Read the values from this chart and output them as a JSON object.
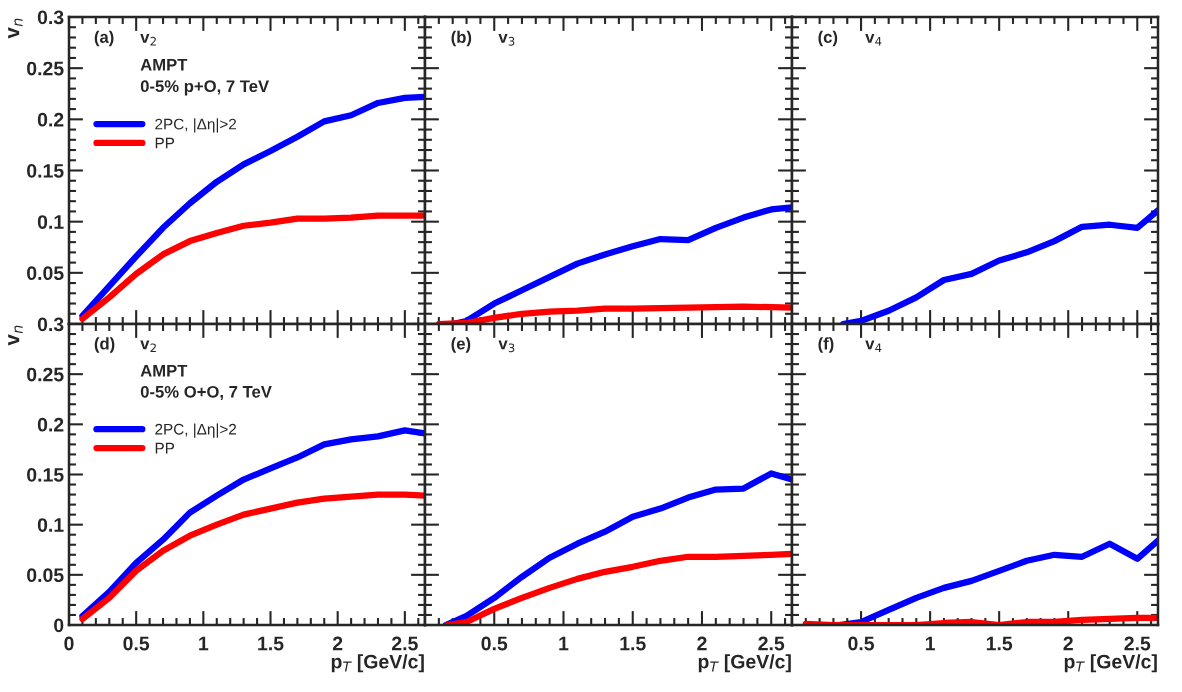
{
  "chart_data": [
    {
      "type": "line",
      "ylabel": "v$_{n}$",
      "annotations": [
        "(a)",
        "v$_{2}$",
        "AMPT",
        "0-5% p+O, 7 TeV"
      ],
      "legend": "top left",
      "tick_labels": "y",
      "xlim": [
        0,
        2.65
      ],
      "ylim": [
        0,
        0.3
      ],
      "xticks": [
        0,
        0.5,
        1,
        1.5,
        2,
        2.5
      ],
      "yticks": [
        {
          "value": 0,
          "label": null
        },
        0.05,
        0.1,
        0.15,
        0.2,
        0.25,
        0.3
      ],
      "line_style": "solid",
      "marker": "none",
      "series": [
        {
          "name": "2PC, |Δη|>2",
          "color": "#0000ff",
          "x": [
            0.1,
            0.3,
            0.5,
            0.7,
            0.9,
            1.1,
            1.3,
            1.5,
            1.7,
            1.9,
            2.1,
            2.3,
            2.5,
            2.65
          ],
          "values": [
            0.008,
            0.037,
            0.066,
            0.094,
            0.118,
            0.139,
            0.156,
            0.169,
            0.183,
            0.198,
            0.204,
            0.216,
            0.221,
            0.222
          ]
        },
        {
          "name": "PP",
          "color": "#ff0000",
          "x": [
            0.1,
            0.3,
            0.5,
            0.7,
            0.9,
            1.1,
            1.3,
            1.5,
            1.7,
            1.9,
            2.1,
            2.3,
            2.5,
            2.65
          ],
          "values": [
            0.005,
            0.026,
            0.049,
            0.068,
            0.081,
            0.089,
            0.096,
            0.099,
            0.103,
            0.103,
            0.104,
            0.106,
            0.106,
            0.106
          ]
        }
      ]
    },
    {
      "type": "line",
      "annotations": [
        "(b)",
        "v$_{3}$"
      ],
      "tick_labels": false,
      "xlim": [
        0,
        2.65
      ],
      "ylim": [
        0,
        0.3
      ],
      "xticks": [
        0,
        0.5,
        1,
        1.5,
        2,
        2.5
      ],
      "yticks": [
        0,
        0.05,
        0.1,
        0.15,
        0.2,
        0.25,
        0.3
      ],
      "line_style": "solid",
      "marker": "none",
      "series": [
        {
          "color": "#0000ff",
          "x": [
            0.2,
            0.3,
            0.5,
            0.7,
            0.9,
            1.1,
            1.3,
            1.5,
            1.7,
            1.9,
            2.1,
            2.3,
            2.5,
            2.65
          ],
          "values": [
            0,
            0.003,
            0.02,
            0.033,
            0.046,
            0.059,
            0.068,
            0.076,
            0.083,
            0.082,
            0.094,
            0.104,
            0.112,
            0.114
          ]
        },
        {
          "color": "#ff0000",
          "x": [
            0.1,
            0.3,
            0.5,
            0.7,
            0.9,
            1.1,
            1.3,
            1.5,
            1.9,
            2.3,
            2.65
          ],
          "values": [
            0,
            0.001,
            0.006,
            0.01,
            0.012,
            0.013,
            0.015,
            0.015,
            0.016,
            0.017,
            0.016
          ]
        }
      ]
    },
    {
      "type": "line",
      "annotations": [
        "(c)",
        "v$_{4}$"
      ],
      "tick_labels": false,
      "xlim": [
        0,
        2.65
      ],
      "ylim": [
        0,
        0.3
      ],
      "xticks": [
        0,
        0.5,
        1,
        1.5,
        2,
        2.5
      ],
      "yticks": [
        0,
        0.05,
        0.1,
        0.15,
        0.2,
        0.25,
        0.3
      ],
      "line_style": "solid",
      "marker": "none",
      "series": [
        {
          "color": "#0000ff",
          "x": [
            0.37,
            0.5,
            0.7,
            0.9,
            1.1,
            1.3,
            1.5,
            1.7,
            1.9,
            2.1,
            2.3,
            2.5,
            2.65
          ],
          "values": [
            0,
            0.003,
            0.013,
            0.026,
            0.043,
            0.049,
            0.062,
            0.07,
            0.081,
            0.095,
            0.097,
            0.094,
            0.111
          ]
        }
      ]
    },
    {
      "type": "line",
      "ylabel": "v$_{n}$",
      "xlabel": "p$_{T}$ [GeV/c]",
      "annotations": [
        "(d)",
        "v$_{2}$",
        "AMPT",
        "0-5% O+O, 7 TeV"
      ],
      "legend": "top left",
      "xlim": [
        0,
        2.65
      ],
      "ylim": [
        0,
        0.3
      ],
      "xticks": [
        0,
        0.5,
        1,
        1.5,
        2,
        2.5
      ],
      "yticks": [
        0,
        0.05,
        0.1,
        0.15,
        0.2,
        0.25,
        0.3
      ],
      "line_style": "solid",
      "marker": "none",
      "series": [
        {
          "name": "2PC, |Δη|>2",
          "color": "#0000ff",
          "x": [
            0.1,
            0.3,
            0.5,
            0.7,
            0.9,
            1.1,
            1.3,
            1.5,
            1.7,
            1.9,
            2.1,
            2.3,
            2.5,
            2.65
          ],
          "values": [
            0.009,
            0.033,
            0.062,
            0.085,
            0.112,
            0.129,
            0.145,
            0.156,
            0.167,
            0.18,
            0.185,
            0.188,
            0.194,
            0.191
          ]
        },
        {
          "name": "PP",
          "color": "#ff0000",
          "x": [
            0.1,
            0.3,
            0.5,
            0.7,
            0.9,
            1.1,
            1.3,
            1.5,
            1.7,
            1.9,
            2.1,
            2.3,
            2.5,
            2.65
          ],
          "values": [
            0.006,
            0.027,
            0.054,
            0.074,
            0.089,
            0.1,
            0.11,
            0.116,
            0.122,
            0.126,
            0.128,
            0.13,
            0.13,
            0.129
          ]
        }
      ]
    },
    {
      "type": "line",
      "xlabel": "p$_{T}$ [GeV/c]",
      "annotations": [
        "(e)",
        "v$_{3}$"
      ],
      "tick_labels": "x",
      "xlim": [
        0,
        2.65
      ],
      "ylim": [
        0,
        0.3
      ],
      "xticks": [
        {
          "value": 0,
          "label": null
        },
        0.5,
        1,
        1.5,
        2,
        2.5
      ],
      "yticks": [
        0,
        0.05,
        0.1,
        0.15,
        0.2,
        0.25,
        0.3
      ],
      "line_style": "solid",
      "marker": "none",
      "series": [
        {
          "color": "#0000ff",
          "x": [
            0.15,
            0.3,
            0.5,
            0.7,
            0.9,
            1.1,
            1.3,
            1.5,
            1.7,
            1.9,
            2.1,
            2.3,
            2.5,
            2.65
          ],
          "values": [
            0,
            0.009,
            0.027,
            0.048,
            0.067,
            0.081,
            0.093,
            0.108,
            0.116,
            0.127,
            0.135,
            0.136,
            0.151,
            0.145
          ]
        },
        {
          "color": "#ff0000",
          "x": [
            0.16,
            0.3,
            0.5,
            0.7,
            0.9,
            1.1,
            1.3,
            1.5,
            1.7,
            1.9,
            2.1,
            2.3,
            2.5,
            2.65
          ],
          "values": [
            0,
            0.003,
            0.016,
            0.027,
            0.037,
            0.046,
            0.053,
            0.058,
            0.064,
            0.068,
            0.068,
            0.069,
            0.07,
            0.071
          ]
        }
      ]
    },
    {
      "type": "line",
      "xlabel": "p$_{T}$ [GeV/c]",
      "annotations": [
        "(f)",
        "v$_{4}$"
      ],
      "tick_labels": "x",
      "xlim": [
        0,
        2.65
      ],
      "ylim": [
        0,
        0.3
      ],
      "xticks": [
        {
          "value": 0,
          "label": null
        },
        0.5,
        1,
        1.5,
        2,
        2.5
      ],
      "yticks": [
        0,
        0.05,
        0.1,
        0.15,
        0.2,
        0.25,
        0.3
      ],
      "line_style": "solid",
      "marker": "none",
      "series": [
        {
          "color": "#0000ff",
          "x": [
            0.34,
            0.5,
            0.7,
            0.9,
            1.1,
            1.3,
            1.5,
            1.7,
            1.9,
            2.1,
            2.3,
            2.5,
            2.65
          ],
          "values": [
            0,
            0.003,
            0.015,
            0.027,
            0.037,
            0.044,
            0.054,
            0.064,
            0.07,
            0.068,
            0.081,
            0.066,
            0.084
          ]
        },
        {
          "color": "#ff0000",
          "x": [
            0.1,
            0.3,
            0.5,
            0.7,
            0.9,
            1.1,
            1.3,
            1.5,
            1.7,
            1.9,
            2.1,
            2.3,
            2.5,
            2.65
          ],
          "values": [
            0.001,
            0,
            0,
            0,
            0,
            0.002,
            0.003,
            0,
            0.003,
            0.003,
            0.005,
            0.006,
            0.007,
            0.007
          ]
        }
      ]
    }
  ]
}
